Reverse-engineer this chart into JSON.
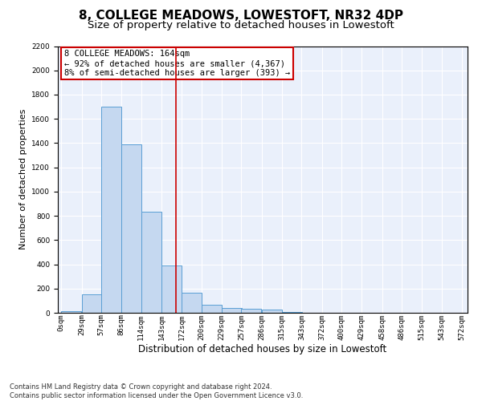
{
  "title": "8, COLLEGE MEADOWS, LOWESTOFT, NR32 4DP",
  "subtitle": "Size of property relative to detached houses in Lowestoft",
  "xlabel": "Distribution of detached houses by size in Lowestoft",
  "ylabel": "Number of detached properties",
  "bar_values": [
    15,
    155,
    1700,
    1390,
    835,
    390,
    165,
    65,
    38,
    30,
    28,
    5,
    0,
    0,
    0,
    0,
    0,
    0,
    0,
    0
  ],
  "bar_left_edges": [
    0,
    29,
    57,
    86,
    114,
    143,
    172,
    200,
    229,
    257,
    286,
    315,
    343,
    372,
    400,
    429,
    458,
    486,
    515,
    543
  ],
  "bar_width": 28.5,
  "tick_labels": [
    "0sqm",
    "29sqm",
    "57sqm",
    "86sqm",
    "114sqm",
    "143sqm",
    "172sqm",
    "200sqm",
    "229sqm",
    "257sqm",
    "286sqm",
    "315sqm",
    "343sqm",
    "372sqm",
    "400sqm",
    "429sqm",
    "458sqm",
    "486sqm",
    "515sqm",
    "543sqm",
    "572sqm"
  ],
  "tick_positions": [
    0,
    29,
    57,
    86,
    114,
    143,
    172,
    200,
    229,
    257,
    286,
    315,
    343,
    372,
    400,
    429,
    458,
    486,
    515,
    543,
    572
  ],
  "bar_color": "#c5d8f0",
  "bar_edge_color": "#5a9fd4",
  "vline_x": 164,
  "vline_color": "#cc0000",
  "annotation_title": "8 COLLEGE MEADOWS: 164sqm",
  "annotation_line1": "← 92% of detached houses are smaller (4,367)",
  "annotation_line2": "8% of semi-detached houses are larger (393) →",
  "annotation_box_color": "#cc0000",
  "ylim_max": 2200,
  "xlim": [
    -5,
    580
  ],
  "footer_line1": "Contains HM Land Registry data © Crown copyright and database right 2024.",
  "footer_line2": "Contains public sector information licensed under the Open Government Licence v3.0.",
  "background_color": "#eaf0fb",
  "grid_color": "#ffffff",
  "title_fontsize": 11,
  "subtitle_fontsize": 9.5,
  "ylabel_fontsize": 8,
  "xlabel_fontsize": 8.5,
  "tick_fontsize": 6.5,
  "annotation_fontsize": 7.5,
  "footer_fontsize": 6
}
